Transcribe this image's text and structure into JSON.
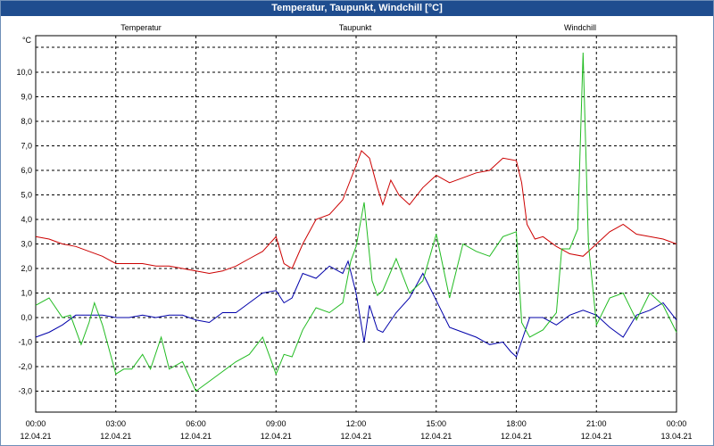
{
  "window": {
    "title": "Temperatur, Taupunkt, Windchill [°C]"
  },
  "chart_data": {
    "type": "line",
    "title": "Temperatur, Taupunkt, Windchill [°C]",
    "ylabel": "°C",
    "ylim": [
      -3.8,
      11.5
    ],
    "yticks": [
      10.0,
      9.0,
      8.0,
      7.0,
      6.0,
      5.0,
      4.0,
      3.0,
      2.0,
      1.0,
      0.0,
      -1.0,
      -2.0,
      -3.0
    ],
    "ytick_labels": [
      "10,0",
      "9,0",
      "8,0",
      "7,0",
      "6,0",
      "5,0",
      "4,0",
      "3,0",
      "2,0",
      "1,0",
      "0,0",
      "-1,0",
      "-2,0",
      "-3,0"
    ],
    "xlim": [
      0,
      24
    ],
    "xticks": [
      {
        "h": 0,
        "time": "00:00",
        "date": "12.04.21"
      },
      {
        "h": 3,
        "time": "03:00",
        "date": "12.04.21"
      },
      {
        "h": 6,
        "time": "06:00",
        "date": "12.04.21"
      },
      {
        "h": 9,
        "time": "09:00",
        "date": "12.04.21"
      },
      {
        "h": 12,
        "time": "12:00",
        "date": "12.04.21"
      },
      {
        "h": 15,
        "time": "15:00",
        "date": "12.04.21"
      },
      {
        "h": 18,
        "time": "18:00",
        "date": "12.04.21"
      },
      {
        "h": 21,
        "time": "21:00",
        "date": "12.04.21"
      },
      {
        "h": 24,
        "time": "00:00",
        "date": "13.04.21"
      }
    ],
    "grid": true,
    "series": [
      {
        "name": "Temperatur",
        "color": "#cc0000",
        "points": [
          [
            0,
            3.3
          ],
          [
            0.5,
            3.2
          ],
          [
            1,
            3.0
          ],
          [
            1.5,
            2.9
          ],
          [
            2,
            2.7
          ],
          [
            2.5,
            2.5
          ],
          [
            3,
            2.2
          ],
          [
            3.5,
            2.2
          ],
          [
            4,
            2.2
          ],
          [
            4.5,
            2.1
          ],
          [
            5,
            2.1
          ],
          [
            5.5,
            2.0
          ],
          [
            6,
            1.9
          ],
          [
            6.5,
            1.8
          ],
          [
            7,
            1.9
          ],
          [
            7.5,
            2.1
          ],
          [
            8,
            2.4
          ],
          [
            8.5,
            2.7
          ],
          [
            9,
            3.3
          ],
          [
            9.3,
            2.2
          ],
          [
            9.6,
            2.0
          ],
          [
            10,
            3.0
          ],
          [
            10.5,
            4.0
          ],
          [
            11,
            4.2
          ],
          [
            11.5,
            4.8
          ],
          [
            12,
            6.2
          ],
          [
            12.2,
            6.8
          ],
          [
            12.5,
            6.5
          ],
          [
            12.8,
            5.3
          ],
          [
            13,
            4.6
          ],
          [
            13.3,
            5.6
          ],
          [
            13.6,
            5.0
          ],
          [
            14,
            4.6
          ],
          [
            14.5,
            5.3
          ],
          [
            15,
            5.8
          ],
          [
            15.5,
            5.5
          ],
          [
            16,
            5.7
          ],
          [
            16.5,
            5.9
          ],
          [
            17,
            6.0
          ],
          [
            17.5,
            6.5
          ],
          [
            18,
            6.4
          ],
          [
            18.2,
            5.5
          ],
          [
            18.4,
            3.8
          ],
          [
            18.7,
            3.2
          ],
          [
            19,
            3.3
          ],
          [
            19.5,
            2.9
          ],
          [
            20,
            2.6
          ],
          [
            20.5,
            2.5
          ],
          [
            20.8,
            2.8
          ],
          [
            21,
            3.0
          ],
          [
            21.5,
            3.5
          ],
          [
            22,
            3.8
          ],
          [
            22.5,
            3.4
          ],
          [
            23,
            3.3
          ],
          [
            23.5,
            3.2
          ],
          [
            24,
            3.0
          ]
        ]
      },
      {
        "name": "Taupunkt",
        "color": "#0000aa",
        "points": [
          [
            0,
            -0.8
          ],
          [
            0.5,
            -0.6
          ],
          [
            1,
            -0.3
          ],
          [
            1.5,
            0.1
          ],
          [
            2,
            0.1
          ],
          [
            2.5,
            0.1
          ],
          [
            3,
            0.0
          ],
          [
            3.5,
            0.0
          ],
          [
            4,
            0.1
          ],
          [
            4.5,
            0.0
          ],
          [
            5,
            0.1
          ],
          [
            5.5,
            0.1
          ],
          [
            6,
            -0.1
          ],
          [
            6.5,
            -0.2
          ],
          [
            7,
            0.2
          ],
          [
            7.5,
            0.2
          ],
          [
            8,
            0.6
          ],
          [
            8.5,
            1.0
          ],
          [
            9,
            1.1
          ],
          [
            9.3,
            0.6
          ],
          [
            9.6,
            0.8
          ],
          [
            10,
            1.8
          ],
          [
            10.5,
            1.6
          ],
          [
            11,
            2.1
          ],
          [
            11.5,
            1.8
          ],
          [
            11.7,
            2.3
          ],
          [
            12,
            1.0
          ],
          [
            12.3,
            -1.0
          ],
          [
            12.5,
            0.5
          ],
          [
            12.8,
            -0.5
          ],
          [
            13,
            -0.6
          ],
          [
            13.5,
            0.2
          ],
          [
            14,
            0.8
          ],
          [
            14.5,
            1.8
          ],
          [
            15,
            0.7
          ],
          [
            15.5,
            -0.4
          ],
          [
            16,
            -0.6
          ],
          [
            16.5,
            -0.8
          ],
          [
            17,
            -1.1
          ],
          [
            17.5,
            -1.0
          ],
          [
            17.8,
            -1.4
          ],
          [
            18,
            -1.6
          ],
          [
            18.5,
            0.0
          ],
          [
            19,
            0.0
          ],
          [
            19.5,
            -0.3
          ],
          [
            20,
            0.1
          ],
          [
            20.5,
            0.3
          ],
          [
            21,
            0.1
          ],
          [
            21.5,
            -0.4
          ],
          [
            22,
            -0.8
          ],
          [
            22.5,
            0.1
          ],
          [
            23,
            0.3
          ],
          [
            23.5,
            0.6
          ],
          [
            24,
            -0.1
          ]
        ]
      },
      {
        "name": "Windchill",
        "color": "#22bb22",
        "points": [
          [
            0,
            0.5
          ],
          [
            0.5,
            0.8
          ],
          [
            1,
            0.0
          ],
          [
            1.3,
            0.1
          ],
          [
            1.7,
            -1.1
          ],
          [
            2,
            -0.2
          ],
          [
            2.2,
            0.6
          ],
          [
            2.5,
            -0.3
          ],
          [
            3,
            -2.3
          ],
          [
            3.3,
            -2.1
          ],
          [
            3.6,
            -2.1
          ],
          [
            4,
            -1.5
          ],
          [
            4.3,
            -2.1
          ],
          [
            4.7,
            -0.8
          ],
          [
            5,
            -2.1
          ],
          [
            5.5,
            -1.8
          ],
          [
            6,
            -3.0
          ],
          [
            6.5,
            -2.6
          ],
          [
            7,
            -2.2
          ],
          [
            7.5,
            -1.8
          ],
          [
            8,
            -1.5
          ],
          [
            8.5,
            -0.8
          ],
          [
            9,
            -2.3
          ],
          [
            9.3,
            -1.5
          ],
          [
            9.6,
            -1.6
          ],
          [
            10,
            -0.5
          ],
          [
            10.5,
            0.4
          ],
          [
            11,
            0.2
          ],
          [
            11.5,
            0.6
          ],
          [
            11.8,
            2.3
          ],
          [
            12,
            2.9
          ],
          [
            12.3,
            4.7
          ],
          [
            12.6,
            1.5
          ],
          [
            12.8,
            0.9
          ],
          [
            13,
            1.1
          ],
          [
            13.5,
            2.4
          ],
          [
            14,
            1.0
          ],
          [
            14.5,
            1.5
          ],
          [
            15,
            3.4
          ],
          [
            15.5,
            0.8
          ],
          [
            16,
            3.0
          ],
          [
            16.5,
            2.7
          ],
          [
            17,
            2.5
          ],
          [
            17.5,
            3.3
          ],
          [
            18,
            3.5
          ],
          [
            18.2,
            -0.2
          ],
          [
            18.5,
            -0.8
          ],
          [
            19,
            -0.5
          ],
          [
            19.5,
            0.2
          ],
          [
            19.7,
            2.8
          ],
          [
            20,
            2.8
          ],
          [
            20.3,
            3.6
          ],
          [
            20.5,
            10.8
          ],
          [
            20.7,
            3.0
          ],
          [
            21,
            -0.3
          ],
          [
            21.5,
            0.8
          ],
          [
            22,
            1.0
          ],
          [
            22.5,
            -0.1
          ],
          [
            23,
            1.0
          ],
          [
            23.5,
            0.5
          ],
          [
            24,
            -0.6
          ]
        ]
      }
    ]
  }
}
